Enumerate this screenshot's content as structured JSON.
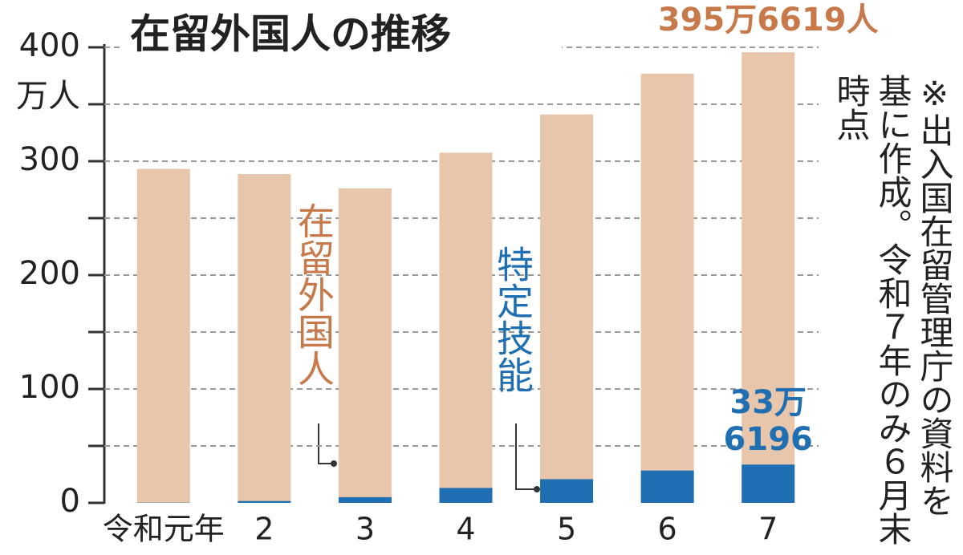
{
  "chart_data": {
    "type": "bar",
    "title": "在留外国人の推移",
    "y_unit": "万人",
    "note": "※出入国在留管理庁の資料を基に作成。令和７年のみ６月末時点",
    "categories": [
      "令和元年",
      "2",
      "3",
      "4",
      "5",
      "6",
      "7"
    ],
    "series": [
      {
        "name": "在留外国人",
        "color": "#e8c6ab",
        "label_color": "#c8794a",
        "values": [
          293.3,
          288.7,
          276.1,
          307.5,
          341.1,
          376.9,
          395.6619
        ],
        "value_labels": [
          null,
          null,
          null,
          null,
          null,
          null,
          "395万6619人"
        ]
      },
      {
        "name": "特定技能",
        "color": "#1f6fb2",
        "label_color": "#1f6fb2",
        "values": [
          0.2,
          1.6,
          5.0,
          13.1,
          20.8,
          28.4,
          33.6196
        ],
        "value_labels": [
          null,
          null,
          null,
          null,
          null,
          null,
          "33万\n6196"
        ]
      }
    ],
    "ylim": [
      0,
      400
    ],
    "yticks": [
      0,
      100,
      200,
      300,
      400
    ],
    "minor_yticks": [
      50,
      150,
      250,
      350
    ],
    "grid": true
  }
}
